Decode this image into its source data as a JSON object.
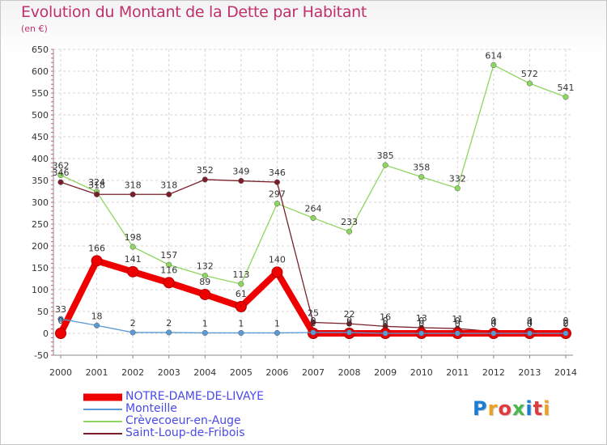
{
  "header": {
    "title": "Evolution du Montant de la Dette par Habitant",
    "unit": "(en €)"
  },
  "logo": {
    "text": "Proxiti",
    "letter_colors": [
      "#1a7fd4",
      "#f0a020",
      "#e23b3b",
      "#49b848",
      "#1a7fd4",
      "#e23b3b",
      "#f0a020"
    ]
  },
  "chart_data": {
    "type": "line",
    "title": "Evolution du Montant de la Dette par Habitant",
    "subtitle": "(en €)",
    "xlabel": "",
    "ylabel": "",
    "x": [
      "2000",
      "2001",
      "2002",
      "2003",
      "2004",
      "2005",
      "2006",
      "2007",
      "2008",
      "2009",
      "2010",
      "2011",
      "2012",
      "2013",
      "2014"
    ],
    "y_ticks": [
      -50,
      0,
      50,
      100,
      150,
      200,
      250,
      300,
      350,
      400,
      450,
      500,
      550,
      600,
      650
    ],
    "ylim": [
      -50,
      650
    ],
    "grid": true,
    "legend_position": "bottom-left",
    "series": [
      {
        "name": "NOTRE-DAME-DE-LIVAYE",
        "color": "#ee0000",
        "emphasis": true,
        "values": [
          0,
          166,
          141,
          116,
          89,
          61,
          140,
          0,
          0,
          0,
          0,
          0,
          0,
          0,
          0
        ],
        "labels": [
          "0",
          "166",
          "141",
          "116",
          "89",
          "61",
          "140",
          "0",
          "0",
          "0",
          "0",
          "0",
          "0",
          "0",
          "0"
        ]
      },
      {
        "name": "Monteille",
        "color": "#5b9bd5",
        "emphasis": false,
        "values": [
          33,
          18,
          2,
          2,
          1,
          1,
          1,
          2,
          2,
          0,
          0,
          0,
          0,
          0,
          0
        ],
        "labels": [
          "33",
          "18",
          "2",
          "2",
          "1",
          "1",
          "1",
          "2",
          "2",
          "0",
          "0",
          "0",
          "0",
          "0",
          "0"
        ]
      },
      {
        "name": "Crèvecoeur-en-Auge",
        "color": "#8ed65f",
        "emphasis": false,
        "values": [
          362,
          324,
          198,
          157,
          132,
          113,
          297,
          264,
          233,
          385,
          358,
          332,
          614,
          572,
          541
        ],
        "labels": [
          "362",
          "324",
          "198",
          "157",
          "132",
          "113",
          "297",
          "264",
          "233",
          "385",
          "358",
          "332",
          "614",
          "572",
          "541"
        ]
      },
      {
        "name": "Saint-Loup-de-Fribois",
        "color": "#7a1f2a",
        "emphasis": false,
        "values": [
          346,
          318,
          318,
          318,
          352,
          349,
          346,
          25,
          22,
          16,
          13,
          11,
          4,
          4,
          2
        ],
        "labels": [
          "346",
          "318",
          "318",
          "318",
          "352",
          "349",
          "346",
          "25",
          "22",
          "16",
          "13",
          "11",
          "4",
          "4",
          "2"
        ]
      }
    ]
  }
}
